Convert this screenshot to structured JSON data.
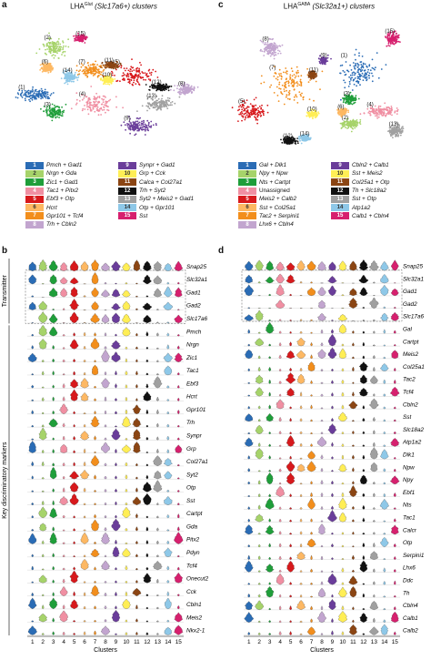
{
  "panels": {
    "a": {
      "label": "a",
      "title_prefix": "LHA",
      "title_sup": "Glut",
      "title_suffix": " (Slc17a6+) clusters",
      "clusters": [
        {
          "id": "1",
          "label": "Pmch + Gad1",
          "color": "#2a6cb5",
          "italic": true
        },
        {
          "id": "2",
          "label": "Nrgn + Gda",
          "color": "#a6d36a",
          "italic": true
        },
        {
          "id": "3",
          "label": "Zic1 + Gad1",
          "color": "#1f9e3a",
          "italic": true
        },
        {
          "id": "4",
          "label": "Tac1 + Pitx2",
          "color": "#f08fa2",
          "italic": true
        },
        {
          "id": "5",
          "label": "Ebf3 + Otp",
          "color": "#d7191c",
          "italic": true
        },
        {
          "id": "6",
          "label": "Hcrt",
          "color": "#fdb863",
          "italic": true
        },
        {
          "id": "7",
          "label": "Gpr101 + Tcf4",
          "color": "#f28e1c",
          "italic": true
        },
        {
          "id": "8",
          "label": "Trh + Cbln2",
          "color": "#c2a5cf",
          "italic": true
        },
        {
          "id": "9",
          "label": "Synpr + Gad1",
          "color": "#6a3d9a",
          "italic": true
        },
        {
          "id": "10",
          "label": "Grp + Cck",
          "color": "#ffee55",
          "italic": true
        },
        {
          "id": "11",
          "label": "Calca + Col27a1",
          "color": "#8b4513",
          "italic": true
        },
        {
          "id": "12",
          "label": "Trh + Syt2",
          "color": "#111111",
          "italic": true
        },
        {
          "id": "13",
          "label": "Syt2 + Meis2 + Gad1",
          "color": "#a0a0a0",
          "italic": true
        },
        {
          "id": "14",
          "label": "Otp + Gpr101",
          "color": "#8ec8e8",
          "italic": true
        },
        {
          "id": "15",
          "label": "Sst",
          "color": "#d6206e",
          "italic": true
        }
      ]
    },
    "c": {
      "label": "c",
      "title_prefix": "LHA",
      "title_sup": "GABA",
      "title_suffix": " (Slc32a1+) clusters",
      "clusters": [
        {
          "id": "1",
          "label": "Gal + Dlk1",
          "color": "#2a6cb5",
          "italic": true
        },
        {
          "id": "2",
          "label": "Npy + Npw",
          "color": "#a6d36a",
          "italic": true
        },
        {
          "id": "3",
          "label": "Nts + Cartpt",
          "color": "#1f9e3a",
          "italic": true
        },
        {
          "id": "4",
          "label": "Unassigned",
          "color": "#f08fa2",
          "italic": false
        },
        {
          "id": "5",
          "label": "Meis2 + Calb2",
          "color": "#d7191c",
          "italic": true
        },
        {
          "id": "6",
          "label": "Sst + Col25a1",
          "color": "#fdb863",
          "italic": true
        },
        {
          "id": "7",
          "label": "Tac2 + Serpini1",
          "color": "#f28e1c",
          "italic": true
        },
        {
          "id": "8",
          "label": "Lhx6 + Cbln4",
          "color": "#c2a5cf",
          "italic": true
        },
        {
          "id": "9",
          "label": "Cbln2 + Calb1",
          "color": "#6a3d9a",
          "italic": true
        },
        {
          "id": "10",
          "label": "Sst + Meis2",
          "color": "#ffee55",
          "italic": true
        },
        {
          "id": "11",
          "label": "Col25a1 + Otp",
          "color": "#8b4513",
          "italic": true
        },
        {
          "id": "12",
          "label": "Th + Slc18a2",
          "color": "#111111",
          "italic": true
        },
        {
          "id": "13",
          "label": "Sst + Otp",
          "color": "#a0a0a0",
          "italic": true
        },
        {
          "id": "14",
          "label": "Atp1a2",
          "color": "#8ec8e8",
          "italic": true
        },
        {
          "id": "15",
          "label": "Calb1 + Cbln4",
          "color": "#d6206e",
          "italic": true
        }
      ]
    },
    "b": {
      "label": "b",
      "transmitter_label": "Transmitter",
      "markers_label": "Key discriminatory markers",
      "xlabel": "Clusters",
      "transmitter_genes": [
        "Snap25",
        "Slc32a1",
        "Gad1",
        "Gad2",
        "Slc17a6"
      ],
      "marker_genes": [
        "Pmch",
        "Nrgn",
        "Zic1",
        "Tac1",
        "Ebf3",
        "Hcrt",
        "Gpr101",
        "Trh",
        "Synpr",
        "Grp",
        "Col27a1",
        "Syt2",
        "Otp",
        "Sst",
        "Cartpt",
        "Gda",
        "Pitx2",
        "Pdyn",
        "Tcf4",
        "Onecut2",
        "Cck",
        "Cbln1",
        "Meis2",
        "Nkx2-1"
      ]
    },
    "d": {
      "label": "d",
      "xlabel": "Clusters",
      "transmitter_genes": [
        "Snap25",
        "Slc32a1",
        "Gad1",
        "Gad2",
        "Slc17a6"
      ],
      "marker_genes": [
        "Gal",
        "Cartpt",
        "Meis2",
        "Col25a1",
        "Tac2",
        "Tcf4",
        "Cbln2",
        "Sst",
        "Slc18a2",
        "Atp1a2",
        "Dlk1",
        "Npw",
        "Npy",
        "Ebf1",
        "Nts",
        "Tac1",
        "Calcr",
        "Otp",
        "Serpini1",
        "Lhx6",
        "Ddc",
        "Th",
        "Cbln4",
        "Calb1",
        "Calb2"
      ]
    },
    "x_ticks": [
      "1",
      "2",
      "3",
      "4",
      "5",
      "6",
      "7",
      "8",
      "9",
      "10",
      "11",
      "12",
      "13",
      "14",
      "15"
    ]
  }
}
